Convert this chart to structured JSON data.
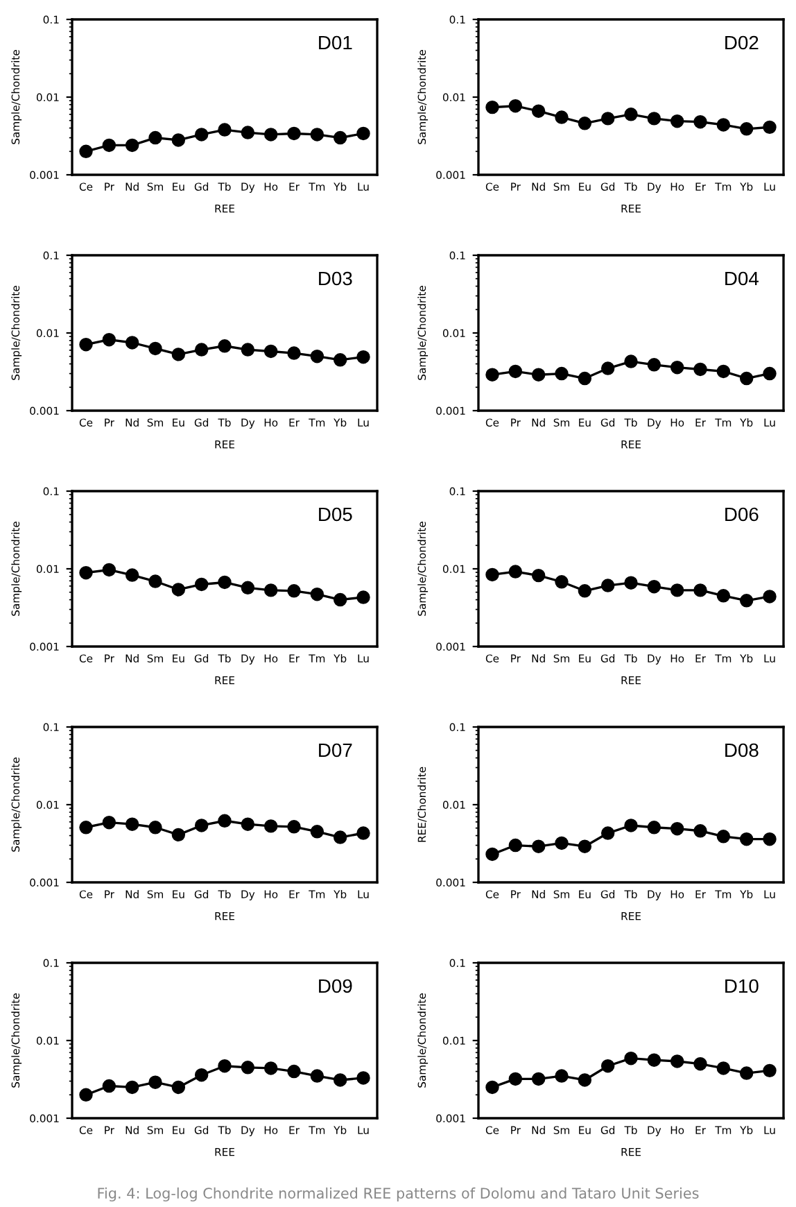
{
  "chart_data": [
    {
      "type": "line",
      "title": "D01",
      "xlabel": "REE",
      "ylabel": "Sample/Chondrite",
      "categories": [
        "Ce",
        "Pr",
        "Nd",
        "Sm",
        "Eu",
        "Gd",
        "Tb",
        "Dy",
        "Ho",
        "Er",
        "Tm",
        "Yb",
        "Lu"
      ],
      "series": [
        {
          "color": "#000000",
          "values": [
            0.002,
            0.0024,
            0.0024,
            0.003,
            0.0028,
            0.0033,
            0.0038,
            0.0035,
            0.0033,
            0.0034,
            0.0033,
            0.003,
            0.0034
          ]
        }
      ],
      "log": "y",
      "ylim": [
        0.001,
        0.1
      ],
      "yticks": [
        0.001,
        0.01,
        0.1
      ],
      "marker": "circle",
      "line_style": "solid"
    },
    {
      "type": "line",
      "title": "D02",
      "xlabel": "REE",
      "ylabel": "Sample/Chondrite",
      "categories": [
        "Ce",
        "Pr",
        "Nd",
        "Sm",
        "Eu",
        "Gd",
        "Tb",
        "Dy",
        "Ho",
        "Er",
        "Tm",
        "Yb",
        "Lu"
      ],
      "series": [
        {
          "color": "#000000",
          "values": [
            0.0074,
            0.0077,
            0.0066,
            0.0055,
            0.0046,
            0.0053,
            0.006,
            0.0053,
            0.0049,
            0.0048,
            0.0044,
            0.0039,
            0.0041
          ]
        }
      ],
      "log": "y",
      "ylim": [
        0.001,
        0.1
      ],
      "yticks": [
        0.001,
        0.01,
        0.1
      ],
      "marker": "circle",
      "line_style": "solid"
    },
    {
      "type": "line",
      "title": "D03",
      "xlabel": "REE",
      "ylabel": "Sample/Chondrite",
      "categories": [
        "Ce",
        "Pr",
        "Nd",
        "Sm",
        "Eu",
        "Gd",
        "Tb",
        "Dy",
        "Ho",
        "Er",
        "Tm",
        "Yb",
        "Lu"
      ],
      "series": [
        {
          "color": "#000000",
          "values": [
            0.0071,
            0.0082,
            0.0075,
            0.0063,
            0.0053,
            0.0061,
            0.0068,
            0.0061,
            0.0058,
            0.0055,
            0.005,
            0.0045,
            0.0049
          ]
        }
      ],
      "log": "y",
      "ylim": [
        0.001,
        0.1
      ],
      "yticks": [
        0.001,
        0.01,
        0.1
      ],
      "marker": "circle",
      "line_style": "solid"
    },
    {
      "type": "line",
      "title": "D04",
      "xlabel": "REE",
      "ylabel": "Sample/Chondrite",
      "categories": [
        "Ce",
        "Pr",
        "Nd",
        "Sm",
        "Eu",
        "Gd",
        "Tb",
        "Dy",
        "Ho",
        "Er",
        "Tm",
        "Yb",
        "Lu"
      ],
      "series": [
        {
          "color": "#000000",
          "values": [
            0.0029,
            0.0032,
            0.0029,
            0.003,
            0.0026,
            0.0035,
            0.0043,
            0.0039,
            0.0036,
            0.0034,
            0.0032,
            0.0026,
            0.003
          ]
        }
      ],
      "log": "y",
      "ylim": [
        0.001,
        0.1
      ],
      "yticks": [
        0.001,
        0.01,
        0.1
      ],
      "marker": "circle",
      "line_style": "solid"
    },
    {
      "type": "line",
      "title": "D05",
      "xlabel": "REE",
      "ylabel": "Sample/Chondrite",
      "categories": [
        "Ce",
        "Pr",
        "Nd",
        "Sm",
        "Eu",
        "Gd",
        "Tb",
        "Dy",
        "Ho",
        "Er",
        "Tm",
        "Yb",
        "Lu"
      ],
      "series": [
        {
          "color": "#000000",
          "values": [
            0.0089,
            0.0097,
            0.0083,
            0.0069,
            0.0054,
            0.0063,
            0.0067,
            0.0057,
            0.0053,
            0.0052,
            0.0047,
            0.004,
            0.0043
          ]
        }
      ],
      "log": "y",
      "ylim": [
        0.001,
        0.1
      ],
      "yticks": [
        0.001,
        0.01,
        0.1
      ],
      "marker": "circle",
      "line_style": "solid"
    },
    {
      "type": "line",
      "title": "D06",
      "xlabel": "REE",
      "ylabel": "Sample/Chondrite",
      "categories": [
        "Ce",
        "Pr",
        "Nd",
        "Sm",
        "Eu",
        "Gd",
        "Tb",
        "Dy",
        "Ho",
        "Er",
        "Tm",
        "Yb",
        "Lu"
      ],
      "series": [
        {
          "color": "#000000",
          "values": [
            0.0084,
            0.0092,
            0.0082,
            0.0068,
            0.0052,
            0.0061,
            0.0066,
            0.0059,
            0.0053,
            0.0053,
            0.0045,
            0.0039,
            0.0044
          ]
        }
      ],
      "log": "y",
      "ylim": [
        0.001,
        0.1
      ],
      "yticks": [
        0.001,
        0.01,
        0.1
      ],
      "marker": "circle",
      "line_style": "solid"
    },
    {
      "type": "line",
      "title": "D07",
      "xlabel": "REE",
      "ylabel": "Sample/Chondrite",
      "categories": [
        "Ce",
        "Pr",
        "Nd",
        "Sm",
        "Eu",
        "Gd",
        "Tb",
        "Dy",
        "Ho",
        "Er",
        "Tm",
        "Yb",
        "Lu"
      ],
      "series": [
        {
          "color": "#000000",
          "values": [
            0.0051,
            0.0059,
            0.0056,
            0.0051,
            0.0041,
            0.0054,
            0.0062,
            0.0056,
            0.0053,
            0.0052,
            0.0045,
            0.0038,
            0.0043
          ]
        }
      ],
      "log": "y",
      "ylim": [
        0.001,
        0.1
      ],
      "yticks": [
        0.001,
        0.01,
        0.1
      ],
      "marker": "circle",
      "line_style": "solid"
    },
    {
      "type": "line",
      "title": "D08",
      "xlabel": "REE",
      "ylabel": "REE/Chondrite",
      "categories": [
        "Ce",
        "Pr",
        "Nd",
        "Sm",
        "Eu",
        "Gd",
        "Tb",
        "Dy",
        "Ho",
        "Er",
        "Tm",
        "Yb",
        "Lu"
      ],
      "series": [
        {
          "color": "#000000",
          "values": [
            0.0023,
            0.003,
            0.0029,
            0.0032,
            0.0029,
            0.0043,
            0.0054,
            0.0051,
            0.0049,
            0.0046,
            0.0039,
            0.0036,
            0.0036
          ]
        }
      ],
      "log": "y",
      "ylim": [
        0.001,
        0.1
      ],
      "yticks": [
        0.001,
        0.01,
        0.1
      ],
      "marker": "circle",
      "line_style": "solid"
    },
    {
      "type": "line",
      "title": "D09",
      "xlabel": "REE",
      "ylabel": "Sample/Chondrite",
      "categories": [
        "Ce",
        "Pr",
        "Nd",
        "Sm",
        "Eu",
        "Gd",
        "Tb",
        "Dy",
        "Ho",
        "Er",
        "Tm",
        "Yb",
        "Lu"
      ],
      "series": [
        {
          "color": "#000000",
          "values": [
            0.002,
            0.0026,
            0.0025,
            0.0029,
            0.0025,
            0.0036,
            0.0047,
            0.0045,
            0.0044,
            0.004,
            0.0035,
            0.0031,
            0.0033
          ]
        }
      ],
      "log": "y",
      "ylim": [
        0.001,
        0.1
      ],
      "yticks": [
        0.001,
        0.01,
        0.1
      ],
      "marker": "circle",
      "line_style": "solid"
    },
    {
      "type": "line",
      "title": "D10",
      "xlabel": "REE",
      "ylabel": "Sample/Chondrite",
      "categories": [
        "Ce",
        "Pr",
        "Nd",
        "Sm",
        "Eu",
        "Gd",
        "Tb",
        "Dy",
        "Ho",
        "Er",
        "Tm",
        "Yb",
        "Lu"
      ],
      "series": [
        {
          "color": "#000000",
          "values": [
            0.0025,
            0.0032,
            0.0032,
            0.0035,
            0.0031,
            0.0047,
            0.0059,
            0.0056,
            0.0054,
            0.005,
            0.0044,
            0.0038,
            0.0041
          ]
        }
      ],
      "log": "y",
      "ylim": [
        0.001,
        0.1
      ],
      "yticks": [
        0.001,
        0.01,
        0.1
      ],
      "marker": "circle",
      "line_style": "solid",
      "annotations": [
        "Fig. 4: Log-log Chondrite normalized REE patterns of Dolomu and Tataro Unit Series"
      ]
    }
  ]
}
